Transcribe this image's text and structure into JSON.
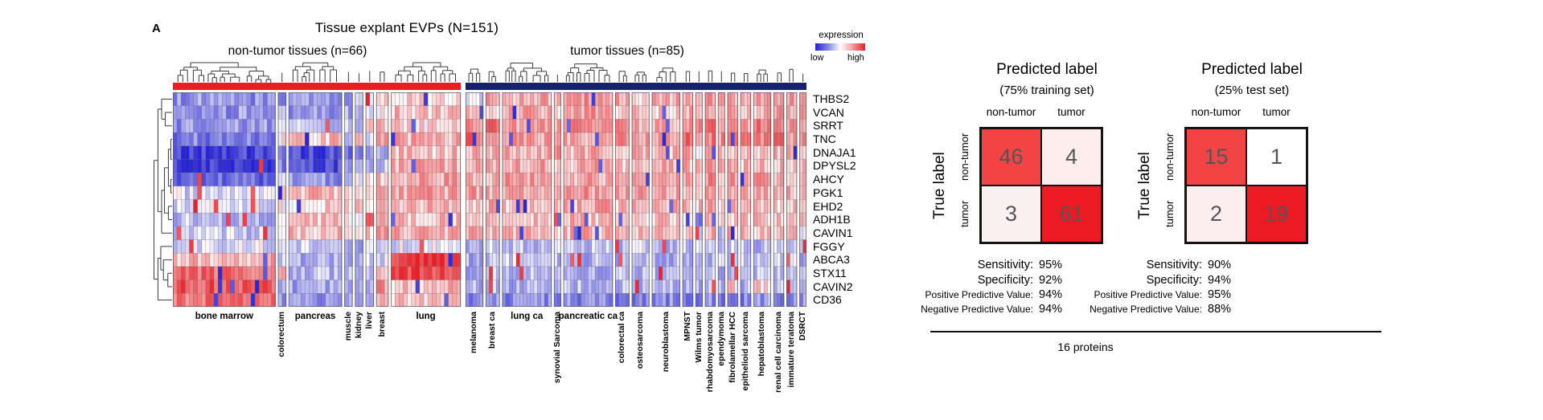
{
  "figure": {
    "panel_label": "A"
  },
  "footer": {
    "label": "16 proteins"
  },
  "chart_data": [
    {
      "name": "tissue-explant-evp-heatmap",
      "type": "heatmap",
      "title": "Tissue explant EVPs (N=151)",
      "group_headers": [
        "non-tumor tissues (n=66)",
        "tumor tissues (n=85)"
      ],
      "scale": {
        "title": "expression",
        "low_label": "low",
        "high_label": "high",
        "min": -2,
        "max": 2,
        "low_color": "#1f1fd0",
        "mid_color": "#ffffff",
        "high_color": "#ec1c24"
      },
      "class_colors": {
        "non_tumor": "#ea1c22",
        "tumor": "#16216b"
      },
      "rows": [
        "THBS2",
        "VCAN",
        "SRRT",
        "TNC",
        "DNAJA1",
        "DPYSL2",
        "AHCY",
        "PGK1",
        "EHD2",
        "ADH1B",
        "CAVIN1",
        "FGGY",
        "ABCA3",
        "STX11",
        "CAVIN2",
        "CD36"
      ],
      "column_groups": [
        {
          "label": "bone marrow",
          "class": "non-tumor",
          "count": 25,
          "label_orientation": "horizontal"
        },
        {
          "label": "colorectum",
          "class": "non-tumor",
          "count": 2,
          "label_orientation": "vertical"
        },
        {
          "label": "pancreas",
          "class": "non-tumor",
          "count": 13,
          "label_orientation": "horizontal"
        },
        {
          "label": "muscle",
          "class": "non-tumor",
          "count": 2,
          "label_orientation": "vertical"
        },
        {
          "label": "kidney",
          "class": "non-tumor",
          "count": 2,
          "label_orientation": "vertical"
        },
        {
          "label": "liver",
          "class": "non-tumor",
          "count": 2,
          "label_orientation": "vertical"
        },
        {
          "label": "breast",
          "class": "non-tumor",
          "count": 3,
          "label_orientation": "vertical"
        },
        {
          "label": "lung",
          "class": "non-tumor",
          "count": 17,
          "label_orientation": "horizontal"
        },
        {
          "label": "melanoma",
          "class": "tumor",
          "count": 5,
          "label_orientation": "vertical"
        },
        {
          "label": "breast ca",
          "class": "tumor",
          "count": 4,
          "label_orientation": "vertical"
        },
        {
          "label": "lung ca",
          "class": "tumor",
          "count": 14,
          "label_orientation": "horizontal"
        },
        {
          "label": "synovial Sarcoma",
          "class": "tumor",
          "count": 2,
          "label_orientation": "vertical"
        },
        {
          "label": "pancreatic ca",
          "class": "tumor",
          "count": 14,
          "label_orientation": "horizontal"
        },
        {
          "label": "colorectal ca",
          "class": "tumor",
          "count": 4,
          "label_orientation": "vertical"
        },
        {
          "label": "osteosarcoma",
          "class": "tumor",
          "count": 5,
          "label_orientation": "vertical"
        },
        {
          "label": "neuroblastoma",
          "class": "tumor",
          "count": 8,
          "label_orientation": "vertical"
        },
        {
          "label": "MPNST",
          "class": "tumor",
          "count": 3,
          "label_orientation": "vertical"
        },
        {
          "label": "Wilms tumor",
          "class": "tumor",
          "count": 2,
          "label_orientation": "vertical"
        },
        {
          "label": "rhabdomyosarcoma",
          "class": "tumor",
          "count": 3,
          "label_orientation": "vertical"
        },
        {
          "label": "ependymoma",
          "class": "tumor",
          "count": 2,
          "label_orientation": "vertical"
        },
        {
          "label": "fibrolamellar HCC",
          "class": "tumor",
          "count": 3,
          "label_orientation": "vertical"
        },
        {
          "label": "epithelioid sarcoma",
          "class": "tumor",
          "count": 3,
          "label_orientation": "vertical"
        },
        {
          "label": "hepatoblastoma",
          "class": "tumor",
          "count": 5,
          "label_orientation": "vertical"
        },
        {
          "label": "renal cell carcinoma",
          "class": "tumor",
          "count": 3,
          "label_orientation": "vertical"
        },
        {
          "label": "immature teratoma",
          "class": "tumor",
          "count": 3,
          "label_orientation": "vertical"
        },
        {
          "label": "DSRCT",
          "class": "tumor",
          "count": 2,
          "label_orientation": "vertical"
        }
      ],
      "levels": [
        [
          -0.9,
          -0.8,
          -0.9,
          -0.8,
          -0.6,
          -0.5,
          0.3,
          0.3,
          -0.4,
          0.8,
          0.6,
          0.5,
          0.9,
          0.7,
          0.4,
          0.6,
          0.8,
          0.5,
          0.9,
          0.4,
          0.8,
          0.5,
          0.7,
          0.6,
          0.8,
          0.5
        ],
        [
          -0.9,
          -0.7,
          -0.8,
          -0.7,
          -0.6,
          -0.4,
          0.2,
          0.5,
          0.7,
          0.4,
          0.6,
          0.4,
          0.8,
          0.5,
          0.6,
          0.3,
          0.6,
          0.4,
          0.7,
          0.5,
          0.9,
          0.6,
          0.5,
          0.8,
          0.4,
          0.6
        ],
        [
          -0.9,
          -0.5,
          -0.5,
          -0.5,
          -0.3,
          0.2,
          0.5,
          0.3,
          1.0,
          1.2,
          0.7,
          0.6,
          0.8,
          0.9,
          0.7,
          0.6,
          1.0,
          0.7,
          1.2,
          0.6,
          1.0,
          0.8,
          1.1,
          0.9,
          0.7,
          0.8
        ],
        [
          -1.1,
          0.3,
          0.4,
          -0.4,
          0.2,
          -0.3,
          0.8,
          0.6,
          1.2,
          1.0,
          0.8,
          0.5,
          0.7,
          1.0,
          0.8,
          0.9,
          1.3,
          0.6,
          1.1,
          0.8,
          1.2,
          1.0,
          0.9,
          1.4,
          0.8,
          1.0
        ],
        [
          -1.8,
          -1.2,
          -1.7,
          -1.2,
          -1.0,
          -0.8,
          -0.6,
          0.5,
          0.5,
          0.6,
          0.6,
          0.7,
          0.6,
          0.5,
          0.6,
          0.5,
          0.7,
          0.4,
          0.6,
          0.5,
          0.6,
          0.6,
          0.5,
          0.6,
          0.5,
          0.6
        ],
        [
          -1.9,
          -1.0,
          -1.6,
          -1.1,
          -0.9,
          -0.7,
          -0.4,
          0.6,
          0.6,
          0.5,
          0.7,
          0.6,
          0.6,
          0.5,
          0.6,
          0.6,
          0.5,
          0.4,
          0.7,
          0.5,
          0.6,
          0.5,
          0.6,
          0.5,
          0.6,
          0.5
        ],
        [
          -1.3,
          -0.6,
          -0.9,
          -0.5,
          -0.2,
          0.3,
          0.4,
          0.7,
          0.7,
          0.6,
          0.8,
          0.6,
          0.7,
          0.7,
          0.6,
          0.8,
          0.6,
          0.5,
          0.9,
          0.6,
          0.7,
          0.6,
          0.8,
          0.7,
          0.6,
          0.7
        ],
        [
          -0.3,
          0.3,
          0.5,
          0.3,
          0.4,
          0.5,
          0.5,
          0.7,
          0.7,
          0.6,
          0.7,
          0.6,
          0.8,
          0.6,
          0.7,
          0.7,
          0.6,
          0.5,
          0.7,
          0.6,
          0.8,
          0.6,
          0.7,
          0.6,
          0.6,
          0.7
        ],
        [
          -0.2,
          0.2,
          0.4,
          0.3,
          0.3,
          0.4,
          0.5,
          0.5,
          0.5,
          0.6,
          0.5,
          0.4,
          0.6,
          0.5,
          0.5,
          0.6,
          0.4,
          0.4,
          0.6,
          0.5,
          0.5,
          0.5,
          0.6,
          0.5,
          0.4,
          0.5
        ],
        [
          -0.5,
          0.2,
          0.4,
          0.2,
          0.3,
          1.2,
          0.5,
          0.5,
          0.4,
          0.5,
          0.5,
          -1.5,
          0.5,
          0.4,
          0.4,
          0.5,
          0.3,
          -1.2,
          0.4,
          0.5,
          0.5,
          0.4,
          0.5,
          0.5,
          0.4,
          0.5
        ],
        [
          -0.4,
          0.3,
          0.5,
          0.3,
          0.4,
          0.4,
          0.6,
          0.6,
          0.5,
          0.5,
          0.6,
          0.4,
          0.6,
          0.5,
          0.5,
          0.5,
          0.4,
          -0.5,
          0.5,
          -0.8,
          0.5,
          0.4,
          0.5,
          0.5,
          0.4,
          -0.6
        ],
        [
          -0.2,
          -0.4,
          -0.5,
          -0.5,
          -0.6,
          -0.3,
          -0.4,
          -0.2,
          -0.5,
          -0.4,
          -0.5,
          -0.4,
          -0.5,
          -0.5,
          -0.4,
          -0.5,
          -0.5,
          -0.4,
          -0.6,
          -0.5,
          -0.4,
          -0.5,
          -0.5,
          -0.4,
          -0.5,
          -0.5
        ],
        [
          0.6,
          -0.5,
          -0.7,
          -0.5,
          -0.5,
          -0.4,
          -0.3,
          1.8,
          -0.6,
          -0.5,
          -0.4,
          -0.5,
          -0.6,
          -0.6,
          -0.5,
          -0.6,
          -0.5,
          -0.5,
          -0.7,
          -0.5,
          -0.6,
          -0.5,
          -0.6,
          -0.5,
          -0.5,
          -0.6
        ],
        [
          1.3,
          0.4,
          -0.5,
          -0.6,
          -0.5,
          -0.4,
          0.3,
          1.6,
          -0.6,
          -0.5,
          -0.5,
          -0.6,
          -0.6,
          -0.5,
          -0.6,
          -0.5,
          -0.6,
          -0.5,
          -0.6,
          -0.6,
          -0.5,
          -0.6,
          -0.5,
          -0.6,
          -0.5,
          -0.6
        ],
        [
          1.5,
          -0.6,
          -0.8,
          -0.7,
          -0.6,
          -0.5,
          0.8,
          0.5,
          -0.6,
          -0.5,
          -0.6,
          -0.6,
          -0.5,
          -0.6,
          -0.6,
          -0.5,
          -0.6,
          -0.6,
          -0.5,
          -0.6,
          0.3,
          -0.6,
          0.3,
          -0.6,
          -0.6,
          -0.5
        ],
        [
          1.2,
          -0.8,
          -1.0,
          -0.9,
          -0.8,
          -0.7,
          0.4,
          0.3,
          -1.0,
          -0.9,
          -1.0,
          -1.1,
          -1.0,
          -1.1,
          -1.0,
          -1.0,
          -1.1,
          -1.0,
          -1.0,
          -1.1,
          -1.0,
          -1.1,
          -0.9,
          -1.0,
          -1.1,
          -1.0
        ]
      ]
    },
    {
      "name": "confusion-matrix-training",
      "type": "heatmap",
      "title": "Predicted label",
      "subtitle": "(75% training set)",
      "col_labels": [
        "non-tumor",
        "tumor"
      ],
      "row_axis_label": "True label",
      "row_labels": [
        "non-tumor",
        "tumor"
      ],
      "cells": [
        [
          46,
          4
        ],
        [
          3,
          61
        ]
      ],
      "cell_colors": [
        [
          "#f24444",
          "#fdecec"
        ],
        [
          "#fcf1f1",
          "#ec1b23"
        ]
      ],
      "stats": [
        {
          "label": "Sensitivity:",
          "value": "95%"
        },
        {
          "label": "Specificity:",
          "value": "92%"
        },
        {
          "label": "Positive Predictive Value:",
          "value": "94%"
        },
        {
          "label": "Negative Predictive Value:",
          "value": "94%"
        }
      ]
    },
    {
      "name": "confusion-matrix-test",
      "type": "heatmap",
      "title": "Predicted label",
      "subtitle": "(25% test set)",
      "col_labels": [
        "non-tumor",
        "tumor"
      ],
      "row_axis_label": "True label",
      "row_labels": [
        "non-tumor",
        "tumor"
      ],
      "cells": [
        [
          15,
          1
        ],
        [
          2,
          19
        ]
      ],
      "cell_colors": [
        [
          "#f24444",
          "#ffffff"
        ],
        [
          "#fceeee",
          "#ec1b23"
        ]
      ],
      "stats": [
        {
          "label": "Sensitivity:",
          "value": "90%"
        },
        {
          "label": "Specificity:",
          "value": "94%"
        },
        {
          "label": "Positive Predictive Value:",
          "value": "95%"
        },
        {
          "label": "Negative Predictive Value:",
          "value": "88%"
        }
      ]
    }
  ]
}
